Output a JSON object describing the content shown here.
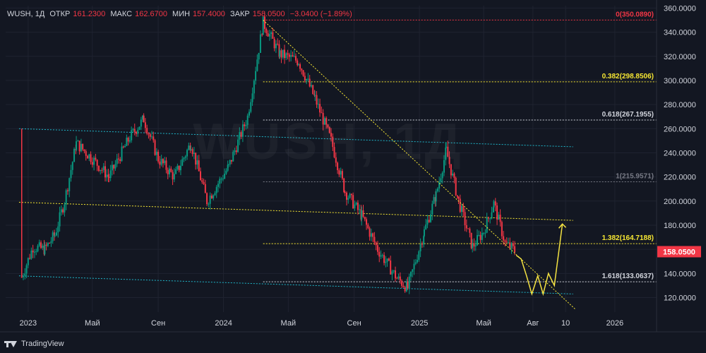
{
  "header": {
    "symbol": "WUSH, 1Д",
    "open_label": "ОТКР",
    "open_value": "161.2300",
    "high_label": "МАКС",
    "high_value": "162.6700",
    "low_label": "МИН",
    "low_value": "157.4000",
    "close_label": "ЗАКР",
    "close_value": "158.0500",
    "change": "−3.0400 (−1.89%)"
  },
  "watermark": "WUSH, 1Д",
  "footer": {
    "brand": "TradingView"
  },
  "colors": {
    "background": "#131722",
    "up": "#089981",
    "down": "#f23645",
    "channel": "#1fb6c9",
    "fib": "#f7e733",
    "projection": "#f5e342",
    "text": "#d1d4dc"
  },
  "icons": {
    "logo": "tradingview-logo-icon"
  },
  "chart_data": {
    "type": "candlestick",
    "title": "",
    "xlabel": "",
    "ylabel": "",
    "ylim": [
      108,
      362
    ],
    "y_ticks": [
      "120.0000",
      "140.0000",
      "160.0000",
      "180.0000",
      "200.0000",
      "220.0000",
      "240.0000",
      "260.0000",
      "280.0000",
      "300.0000",
      "320.0000",
      "340.0000",
      "360.0000"
    ],
    "x_ticks": [
      "2023",
      "Май",
      "Сен",
      "2024",
      "Май",
      "Сен",
      "2025",
      "Май",
      "Авг",
      "10",
      "2026"
    ],
    "last_price": "158.0500",
    "price_path": [
      [
        "2022-12-20",
        137
      ],
      [
        "2023-01-10",
        162
      ],
      [
        "2023-02-01",
        160
      ],
      [
        "2023-02-20",
        172
      ],
      [
        "2023-03-10",
        200
      ],
      [
        "2023-04-01",
        248
      ],
      [
        "2023-05-01",
        235
      ],
      [
        "2023-06-01",
        220
      ],
      [
        "2023-07-10",
        253
      ],
      [
        "2023-08-05",
        268
      ],
      [
        "2023-09-01",
        235
      ],
      [
        "2023-10-01",
        220
      ],
      [
        "2023-11-01",
        248
      ],
      [
        "2023-12-01",
        200
      ],
      [
        "2024-01-10",
        228
      ],
      [
        "2024-02-15",
        270
      ],
      [
        "2024-03-15",
        348
      ],
      [
        "2024-04-15",
        322
      ],
      [
        "2024-05-20",
        316
      ],
      [
        "2024-06-20",
        285
      ],
      [
        "2024-07-20",
        250
      ],
      [
        "2024-08-15",
        208
      ],
      [
        "2024-09-15",
        188
      ],
      [
        "2024-10-15",
        160
      ],
      [
        "2024-11-20",
        136
      ],
      [
        "2024-12-10",
        128
      ],
      [
        "2025-01-10",
        175
      ],
      [
        "2025-02-01",
        205
      ],
      [
        "2025-02-20",
        242
      ],
      [
        "2025-03-15",
        200
      ],
      [
        "2025-04-10",
        162
      ],
      [
        "2025-05-01",
        175
      ],
      [
        "2025-05-20",
        198
      ],
      [
        "2025-06-10",
        165
      ],
      [
        "2025-07-01",
        158
      ]
    ],
    "fib_levels": [
      {
        "label": "0(350.0890)",
        "price": 350.089,
        "color": "#f23645",
        "start": "2024-03-15"
      },
      {
        "label": "0.382(298.8506)",
        "price": 298.8506,
        "color": "#f7e733",
        "start": "2024-03-15"
      },
      {
        "label": "0.618(267.1955)",
        "price": 267.1955,
        "color": "#d1d4dc",
        "start": "2024-03-15"
      },
      {
        "label": "1(215.9571)",
        "price": 215.9571,
        "color": "#787b86",
        "start": "2024-03-15"
      },
      {
        "label": "1.382(164.7188)",
        "price": 164.7188,
        "color": "#f7e733",
        "start": "2024-03-15"
      },
      {
        "label": "1.618(133.0637)",
        "price": 133.0637,
        "color": "#d1d4dc",
        "start": "2024-03-15"
      }
    ],
    "channel_lines": [
      {
        "from": [
          "2022-12-15",
          260
        ],
        "to": [
          "2025-10-15",
          245
        ],
        "color": "#1fb6c9"
      },
      {
        "from": [
          "2022-12-15",
          199
        ],
        "to": [
          "2025-10-15",
          184
        ],
        "color": "#f7e733"
      },
      {
        "from": [
          "2022-12-15",
          138
        ],
        "to": [
          "2025-10-15",
          123
        ],
        "color": "#1fb6c9"
      }
    ],
    "trend_line": {
      "from": [
        "2024-03-15",
        350
      ],
      "to": [
        "2025-10-20",
        110
      ]
    },
    "projection_path": [
      [
        "2025-07-01",
        155
      ],
      [
        "2025-07-10",
        152
      ],
      [
        "2025-07-20",
        138
      ],
      [
        "2025-07-30",
        123
      ],
      [
        "2025-08-10",
        138
      ],
      [
        "2025-08-20",
        123
      ],
      [
        "2025-08-30",
        140
      ],
      [
        "2025-09-10",
        130
      ],
      [
        "2025-09-25",
        181
      ]
    ]
  }
}
